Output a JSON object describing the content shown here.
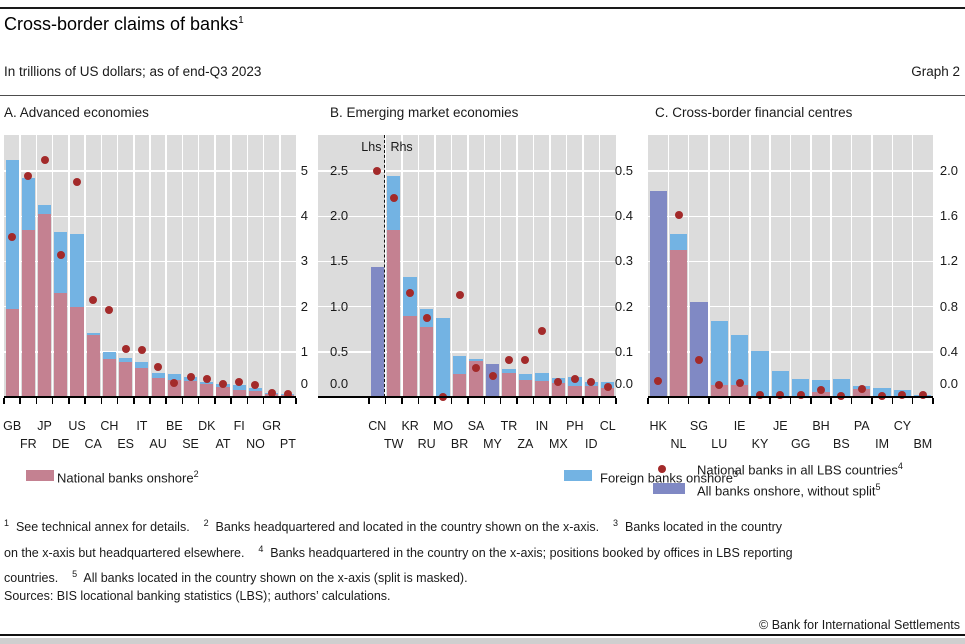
{
  "header": {
    "title": "Cross-border claims of banks",
    "title_sup": "1",
    "subtitle": "In trillions of US dollars; as of end-Q3 2023",
    "graph_label": "Graph 2"
  },
  "colors": {
    "national": "#c48191",
    "foreign": "#73b3e3",
    "nosplit": "#8089c4",
    "dot": "#a32a2a",
    "panel_bg": "#dcdcdc",
    "grid": "#ffffff",
    "axis": "#000000"
  },
  "chart_data": {
    "type": "bar",
    "title": "Cross-border claims of banks",
    "units": "trillions of US dollars",
    "as_of": "end-Q3 2023",
    "stacking": "national (pink, bottom) + foreign (blue, top); purple = all banks onshore without split; red dot = national banks in all LBS countries",
    "panels": [
      {
        "id": "a",
        "title": "A. Advanced economies",
        "right_axis": {
          "tick_labels": [
            "5",
            "4",
            "3",
            "2",
            "1",
            "0"
          ],
          "tick_values": [
            5,
            4,
            3,
            2,
            1,
            0
          ],
          "max": 5.8
        },
        "bars": [
          {
            "c": "GB",
            "national": 1.95,
            "foreign": 3.3,
            "dot": 3.55
          },
          {
            "c": "FR",
            "national": 3.7,
            "foreign": 1.15,
            "dot": 4.9
          },
          {
            "c": "JP",
            "national": 4.05,
            "foreign": 0.2,
            "dot": 5.25
          },
          {
            "c": "DE",
            "national": 2.3,
            "foreign": 1.35,
            "dot": 3.15
          },
          {
            "c": "US",
            "national": 2.0,
            "foreign": 1.6,
            "dot": 4.75
          },
          {
            "c": "CA",
            "national": 1.37,
            "foreign": 0.05,
            "dot": 2.15
          },
          {
            "c": "CH",
            "national": 0.85,
            "foreign": 0.15,
            "dot": 1.93
          },
          {
            "c": "ES",
            "national": 0.78,
            "foreign": 0.08,
            "dot": 1.06
          },
          {
            "c": "IT",
            "national": 0.65,
            "foreign": 0.12,
            "dot": 1.05
          },
          {
            "c": "AU",
            "national": 0.43,
            "foreign": 0.1,
            "dot": 0.67
          },
          {
            "c": "BE",
            "national": 0.38,
            "foreign": 0.13,
            "dot": 0.3
          },
          {
            "c": "SE",
            "national": 0.36,
            "foreign": 0.08,
            "dot": 0.44
          },
          {
            "c": "DK",
            "national": 0.28,
            "foreign": 0.06,
            "dot": 0.4
          },
          {
            "c": "AT",
            "national": 0.22,
            "foreign": 0.06,
            "dot": 0.28
          },
          {
            "c": "FI",
            "national": 0.16,
            "foreign": 0.1,
            "dot": 0.34
          },
          {
            "c": "NO",
            "national": 0.14,
            "foreign": 0.06,
            "dot": 0.27
          },
          {
            "c": "GR",
            "national": 0.08,
            "foreign": 0.015,
            "dot": 0.08
          },
          {
            "c": "PT",
            "national": 0.05,
            "foreign": 0.02,
            "dot": 0.06
          }
        ]
      },
      {
        "id": "b",
        "title": "B. Emerging market economies",
        "left_axis": {
          "label": "Lhs",
          "tick_labels": [
            "2.5",
            "2.0",
            "1.5",
            "1.0",
            "0.5",
            "0.0"
          ],
          "tick_values": [
            2.5,
            2.0,
            1.5,
            1.0,
            0.5,
            0.0
          ],
          "max": 2.9
        },
        "right_axis": {
          "label": "Rhs",
          "tick_labels": [
            "0.5",
            "0.4",
            "0.3",
            "0.2",
            "0.1",
            "0.0"
          ],
          "tick_values": [
            0.5,
            0.4,
            0.3,
            0.2,
            0.1,
            0.0
          ],
          "max": 0.58
        },
        "divider_after_index": 0,
        "bars": [
          {
            "c": "CN",
            "onshore_nosplit": 1.44,
            "dot": 2.5,
            "scale": "lhs"
          },
          {
            "c": "TW",
            "national": 0.37,
            "foreign": 0.12,
            "dot": 0.44
          },
          {
            "c": "KR",
            "national": 0.18,
            "foreign": 0.085,
            "dot": 0.23
          },
          {
            "c": "RU",
            "national": 0.155,
            "foreign": 0.04,
            "dot": 0.175
          },
          {
            "c": "MO",
            "national": 0,
            "foreign": 0.175,
            "dot": 0.0
          },
          {
            "c": "BR",
            "national": 0.05,
            "foreign": 0.04,
            "dot": 0.225
          },
          {
            "c": "SA",
            "national": 0.08,
            "foreign": 0.004,
            "dot": 0.065
          },
          {
            "c": "MY",
            "onshore_nosplit": 0.072,
            "dot": 0.047
          },
          {
            "c": "TR",
            "national": 0.053,
            "foreign": 0.009,
            "dot": 0.082
          },
          {
            "c": "ZA",
            "national": 0.038,
            "foreign": 0.012,
            "dot": 0.082
          },
          {
            "c": "IN",
            "national": 0.036,
            "foreign": 0.017,
            "dot": 0.147
          },
          {
            "c": "MX",
            "national": 0.03,
            "foreign": 0.013,
            "dot": 0.033
          },
          {
            "c": "PH",
            "national": 0.025,
            "foreign": 0.02,
            "dot": 0.039
          },
          {
            "c": "ID",
            "national": 0.025,
            "foreign": 0.009,
            "dot": 0.034
          },
          {
            "c": "CL",
            "national": 0.02,
            "foreign": 0.014,
            "dot": 0.023
          }
        ]
      },
      {
        "id": "c",
        "title": "C. Cross-border financial centres",
        "right_axis": {
          "tick_labels": [
            "2.0",
            "1.6",
            "1.2",
            "0.8",
            "0.4",
            "0.0"
          ],
          "tick_values": [
            2.0,
            1.6,
            1.2,
            0.8,
            0.4,
            0.0
          ],
          "max": 2.32
        },
        "bars": [
          {
            "c": "HK",
            "onshore_nosplit": 1.82,
            "dot": 0.14
          },
          {
            "c": "NL",
            "national": 1.3,
            "foreign": 0.14,
            "dot": 1.61
          },
          {
            "c": "SG",
            "onshore_nosplit": 0.84,
            "dot": 0.33
          },
          {
            "c": "LU",
            "national": 0.11,
            "foreign": 0.565,
            "dot": 0.11
          },
          {
            "c": "IE",
            "national": 0.11,
            "foreign": 0.44,
            "dot": 0.125
          },
          {
            "c": "KY",
            "national": 0,
            "foreign": 0.41,
            "dot": 0.02
          },
          {
            "c": "JE",
            "national": 0,
            "foreign": 0.23,
            "dot": 0.02
          },
          {
            "c": "GG",
            "national": 0,
            "foreign": 0.16,
            "dot": 0.02
          },
          {
            "c": "BH",
            "national": 0.04,
            "foreign": 0.11,
            "dot": 0.06
          },
          {
            "c": "BS",
            "national": 0,
            "foreign": 0.155,
            "dot": 0.01
          },
          {
            "c": "PA",
            "national": 0.07,
            "foreign": 0.03,
            "dot": 0.07
          },
          {
            "c": "IM",
            "national": 0,
            "foreign": 0.08,
            "dot": 0.01
          },
          {
            "c": "CY",
            "national": 0,
            "foreign": 0.06,
            "dot": 0.02
          },
          {
            "c": "BM",
            "national": 0,
            "foreign": 0.02,
            "dot": 0.02
          }
        ]
      }
    ]
  },
  "legend": [
    {
      "type": "national",
      "text": "National banks onshore",
      "sup": "2"
    },
    {
      "type": "foreign",
      "text": "Foreign banks onshore",
      "sup": "3"
    },
    {
      "type": "dot",
      "text": "National banks in all LBS countries",
      "sup": "4"
    },
    {
      "type": "nosplit",
      "text": "All banks onshore, without split",
      "sup": "5"
    }
  ],
  "footnotes": {
    "lines": [
      [
        {
          "sup": "1"
        },
        {
          "text": "  See technical annex for details.    "
        },
        {
          "sup": "2"
        },
        {
          "text": "  Banks headquartered and located in the country shown on the x-axis.    "
        },
        {
          "sup": "3"
        },
        {
          "text": "  Banks located in the country"
        }
      ],
      [
        {
          "text": "on the x-axis but headquartered elsewhere.    "
        },
        {
          "sup": "4"
        },
        {
          "text": "  Banks headquartered in the country on the x-axis; positions booked by offices in LBS reporting"
        }
      ],
      [
        {
          "text": "countries.    "
        },
        {
          "sup": "5"
        },
        {
          "text": "  All banks located in the country shown on the x-axis (split is masked)."
        }
      ]
    ]
  },
  "sources": "Sources: BIS locational banking statistics (LBS); authors’ calculations.",
  "copyright": "© Bank for International Settlements"
}
